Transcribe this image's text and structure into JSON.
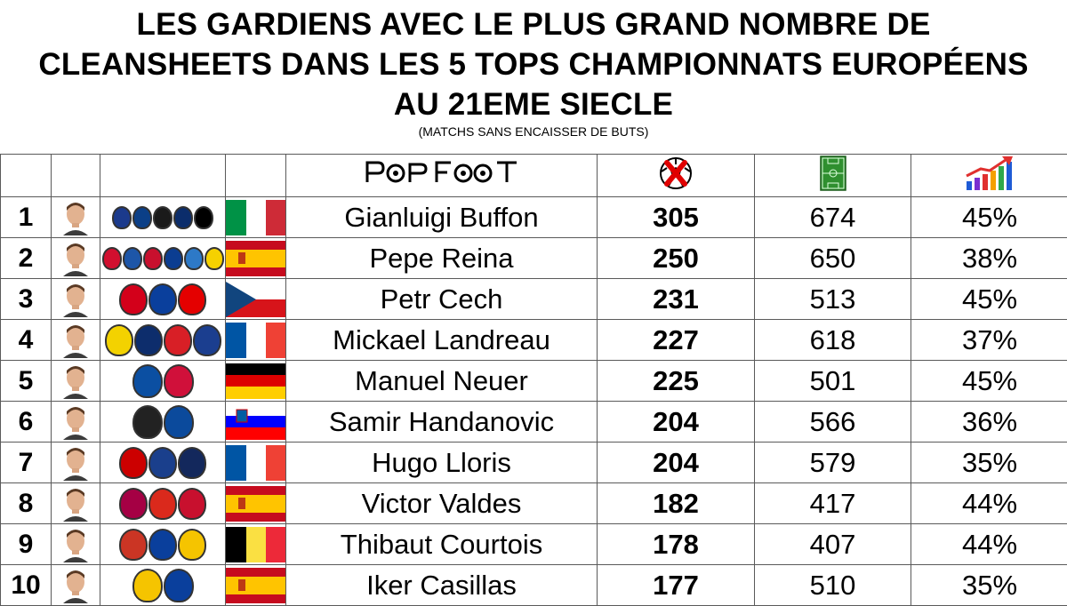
{
  "title": {
    "line1": "LES GARDIENS AVEC LE PLUS GRAND NOMBRE DE",
    "line2": "CLEANSHEETS DANS LES 5 TOPS CHAMPIONNATS EUROPÉENS",
    "line3": "AU 21EME SIECLE",
    "subtitle": "(MATCHS SANS ENCAISSER DE BUTS)"
  },
  "brand": "PopFoot",
  "colors": {
    "border": "#5a5a5a",
    "text": "#000000",
    "background": "#ffffff"
  },
  "header_icons": [
    "no-goal-ball-icon",
    "football-pitch-icon",
    "rising-chart-icon"
  ],
  "rows": [
    {
      "rank": "1",
      "name": "Gianluigi Buffon",
      "cleansheets": "305",
      "matches": "674",
      "pct": "45%",
      "country": "Italy",
      "flag": "it",
      "clubs": [
        "#1b3a8c",
        "#0b3f87",
        "#1a1a1a",
        "#0b2d6b",
        "#000000"
      ]
    },
    {
      "rank": "2",
      "name": "Pepe Reina",
      "cleansheets": "250",
      "matches": "650",
      "pct": "38%",
      "country": "Spain",
      "flag": "es",
      "clubs": [
        "#d10f2f",
        "#1d56a8",
        "#c8102e",
        "#0b3d91",
        "#2d79c7",
        "#f5d100"
      ]
    },
    {
      "rank": "3",
      "name": "Petr Cech",
      "cleansheets": "231",
      "matches": "513",
      "pct": "45%",
      "country": "Czech Republic",
      "flag": "cz",
      "clubs": [
        "#d3001a",
        "#0a3f9c",
        "#e40000"
      ]
    },
    {
      "rank": "4",
      "name": "Mickael Landreau",
      "cleansheets": "227",
      "matches": "618",
      "pct": "37%",
      "country": "France",
      "flag": "fr",
      "clubs": [
        "#f3d200",
        "#0d2d6c",
        "#d81f26",
        "#1b3e8f"
      ]
    },
    {
      "rank": "5",
      "name": "Manuel Neuer",
      "cleansheets": "225",
      "matches": "501",
      "pct": "45%",
      "country": "Germany",
      "flag": "de",
      "clubs": [
        "#0b4fa2",
        "#d0103a"
      ]
    },
    {
      "rank": "6",
      "name": "Samir Handanovic",
      "cleansheets": "204",
      "matches": "566",
      "pct": "36%",
      "country": "Slovenia",
      "flag": "si",
      "clubs": [
        "#222222",
        "#0b4a9c"
      ]
    },
    {
      "rank": "7",
      "name": "Hugo Lloris",
      "cleansheets": "204",
      "matches": "579",
      "pct": "35%",
      "country": "France",
      "flag": "fr",
      "clubs": [
        "#cc0000",
        "#1a3f8c",
        "#13285c"
      ]
    },
    {
      "rank": "8",
      "name": "Victor Valdes",
      "cleansheets": "182",
      "matches": "417",
      "pct": "44%",
      "country": "Spain",
      "flag": "es",
      "clubs": [
        "#a50044",
        "#da291c",
        "#c8102e"
      ]
    },
    {
      "rank": "9",
      "name": "Thibaut Courtois",
      "cleansheets": "178",
      "matches": "407",
      "pct": "44%",
      "country": "Belgium",
      "flag": "be",
      "clubs": [
        "#cb3524",
        "#0a3f9c",
        "#f5c400"
      ]
    },
    {
      "rank": "10",
      "name": "Iker Casillas",
      "cleansheets": "177",
      "matches": "510",
      "pct": "35%",
      "country": "Spain",
      "flag": "es",
      "clubs": [
        "#f5c400",
        "#0a3f9c"
      ]
    }
  ]
}
